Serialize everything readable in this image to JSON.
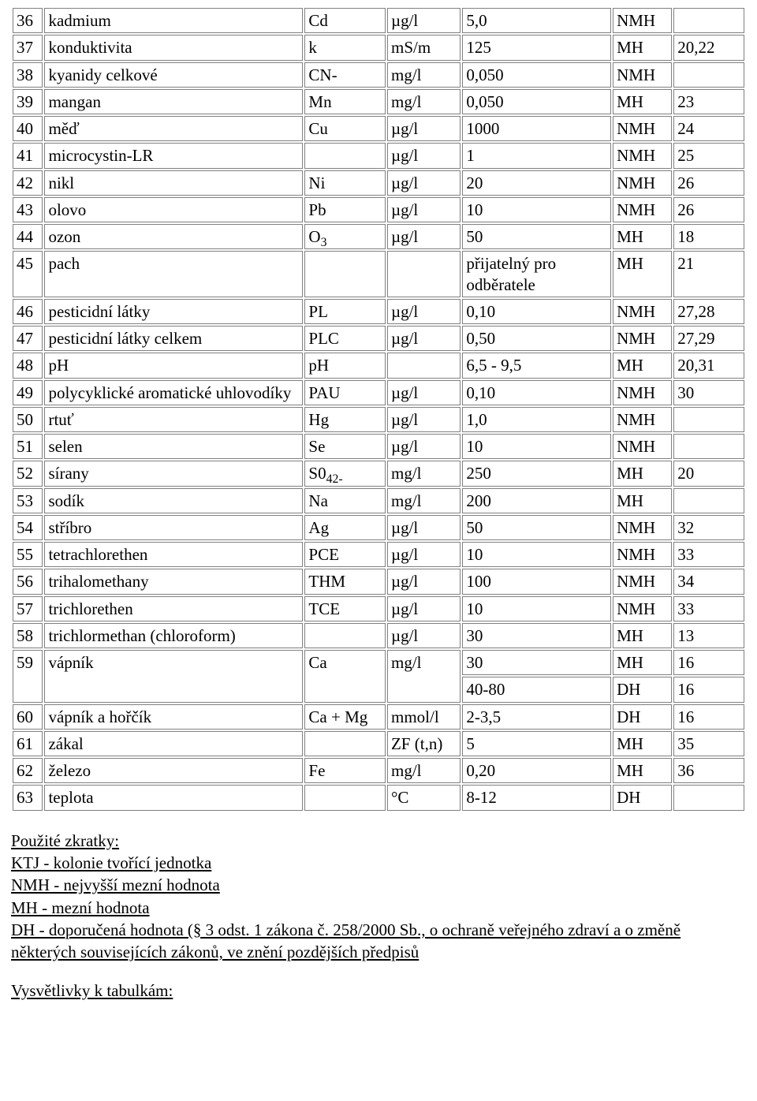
{
  "table": {
    "border_color": "#808080",
    "background_color": "#ffffff",
    "font_family": "Times New Roman",
    "font_size_pt": 16,
    "col_widths_pct": [
      4.2,
      35.8,
      11.2,
      10.2,
      20.6,
      8.2,
      9.8
    ],
    "rows": [
      {
        "n": "36",
        "name": "kadmium",
        "sym": "Cd",
        "unit": "µg/l",
        "limit": "5,0",
        "type": "NMH",
        "note": ""
      },
      {
        "n": "37",
        "name": "konduktivita",
        "sym": "k",
        "unit": "mS/m",
        "limit": "125",
        "type": "MH",
        "note": "20,22"
      },
      {
        "n": "38",
        "name": "kyanidy celkové",
        "sym": "CN-",
        "unit": "mg/l",
        "limit": "0,050",
        "type": "NMH",
        "note": ""
      },
      {
        "n": "39",
        "name": "mangan",
        "sym": "Mn",
        "unit": "mg/l",
        "limit": "0,050",
        "type": "MH",
        "note": "23"
      },
      {
        "n": "40",
        "name": "měď",
        "sym": "Cu",
        "unit": "µg/l",
        "limit": "1000",
        "type": "NMH",
        "note": "24"
      },
      {
        "n": "41",
        "name": "microcystin-LR",
        "sym": "",
        "unit": "µg/l",
        "limit": "1",
        "type": "NMH",
        "note": "25"
      },
      {
        "n": "42",
        "name": "nikl",
        "sym": "Ni",
        "unit": "µg/l",
        "limit": "20",
        "type": "NMH",
        "note": "26"
      },
      {
        "n": "43",
        "name": "olovo",
        "sym": "Pb",
        "unit": "µg/l",
        "limit": "10",
        "type": "NMH",
        "note": "26"
      },
      {
        "n": "44",
        "name": "ozon",
        "sym_html": "O<sub>3</sub>",
        "unit": "µg/l",
        "limit": "50",
        "type": "MH",
        "note": "18"
      },
      {
        "n": "45",
        "name": "pach",
        "sym": "",
        "unit": "",
        "limit": "přijatelný pro odběratele",
        "type": "MH",
        "note": "21"
      },
      {
        "n": "46",
        "name": "pesticidní látky",
        "sym": "PL",
        "unit": "µg/l",
        "limit": "0,10",
        "type": "NMH",
        "note": "27,28"
      },
      {
        "n": "47",
        "name": "pesticidní látky celkem",
        "sym": "PLC",
        "unit": "µg/l",
        "limit": "0,50",
        "type": "NMH",
        "note": "27,29"
      },
      {
        "n": "48",
        "name": "pH",
        "sym": "pH",
        "unit": "",
        "limit": "6,5 - 9,5",
        "type": "MH",
        "note": "20,31"
      },
      {
        "n": "49",
        "name": "polycyklické aromatické uhlovodíky",
        "sym": "PAU",
        "unit": "µg/l",
        "limit": "0,10",
        "type": "NMH",
        "note": "30"
      },
      {
        "n": "50",
        "name": "rtuť",
        "sym": "Hg",
        "unit": "µg/l",
        "limit": "1,0",
        "type": "NMH",
        "note": ""
      },
      {
        "n": "51",
        "name": "selen",
        "sym": "Se",
        "unit": "µg/l",
        "limit": "10",
        "type": "NMH",
        "note": ""
      },
      {
        "n": "52",
        "name": "sírany",
        "sym_html": "S0<sub>42-</sub>",
        "unit": "mg/l",
        "limit": "250",
        "type": "MH",
        "note": "20"
      },
      {
        "n": "53",
        "name": "sodík",
        "sym": "Na",
        "unit": "mg/l",
        "limit": "200",
        "type": "MH",
        "note": ""
      },
      {
        "n": "54",
        "name": "stříbro",
        "sym": "Ag",
        "unit": "µg/l",
        "limit": "50",
        "type": "NMH",
        "note": "32"
      },
      {
        "n": "55",
        "name": "tetrachlorethen",
        "sym": "PCE",
        "unit": "µg/l",
        "limit": "10",
        "type": "NMH",
        "note": "33"
      },
      {
        "n": "56",
        "name": "trihalomethany",
        "sym": "THM",
        "unit": "µg/l",
        "limit": "100",
        "type": "NMH",
        "note": "34"
      },
      {
        "n": "57",
        "name": "trichlorethen",
        "sym": "TCE",
        "unit": "µg/l",
        "limit": "10",
        "type": "NMH",
        "note": "33"
      },
      {
        "n": "58",
        "name": "trichlormethan (chloroform)",
        "sym": "",
        "unit": "µg/l",
        "limit": "30",
        "type": "MH",
        "note": "13"
      },
      {
        "n": "59",
        "name": "vápník",
        "sym": "Ca",
        "unit": "mg/l",
        "multi": [
          {
            "limit": "30",
            "type": "MH",
            "note": "16"
          },
          {
            "limit": "40-80",
            "type": "DH",
            "note": "16"
          }
        ]
      },
      {
        "n": "60",
        "name": "vápník a hořčík",
        "sym": "Ca + Mg",
        "unit": "mmol/l",
        "limit": "2-3,5",
        "type": "DH",
        "note": "16"
      },
      {
        "n": "61",
        "name": "zákal",
        "sym": "",
        "unit": "ZF (t,n)",
        "limit": "5",
        "type": "MH",
        "note": "35"
      },
      {
        "n": "62",
        "name": "železo",
        "sym": "Fe",
        "unit": "mg/l",
        "limit": "0,20",
        "type": "MH",
        "note": "36"
      },
      {
        "n": "63",
        "name": "teplota",
        "sym": "",
        "unit": "°C",
        "limit": "8-12",
        "type": "DH",
        "note": ""
      }
    ]
  },
  "footer": {
    "heading1": "Použité zkratky:",
    "lines": [
      "KTJ - kolonie tvořící jednotka",
      "NMH - nejvyšší mezní hodnota",
      "MH - mezní hodnota",
      "DH - doporučená hodnota (§ 3 odst. 1 zákona č. 258/2000 Sb., o ochraně veřejného zdraví a o změně některých souvisejících zákonů, ve znění pozdějších předpisů"
    ],
    "heading2": "Vysvětlivky k tabulkám:"
  }
}
